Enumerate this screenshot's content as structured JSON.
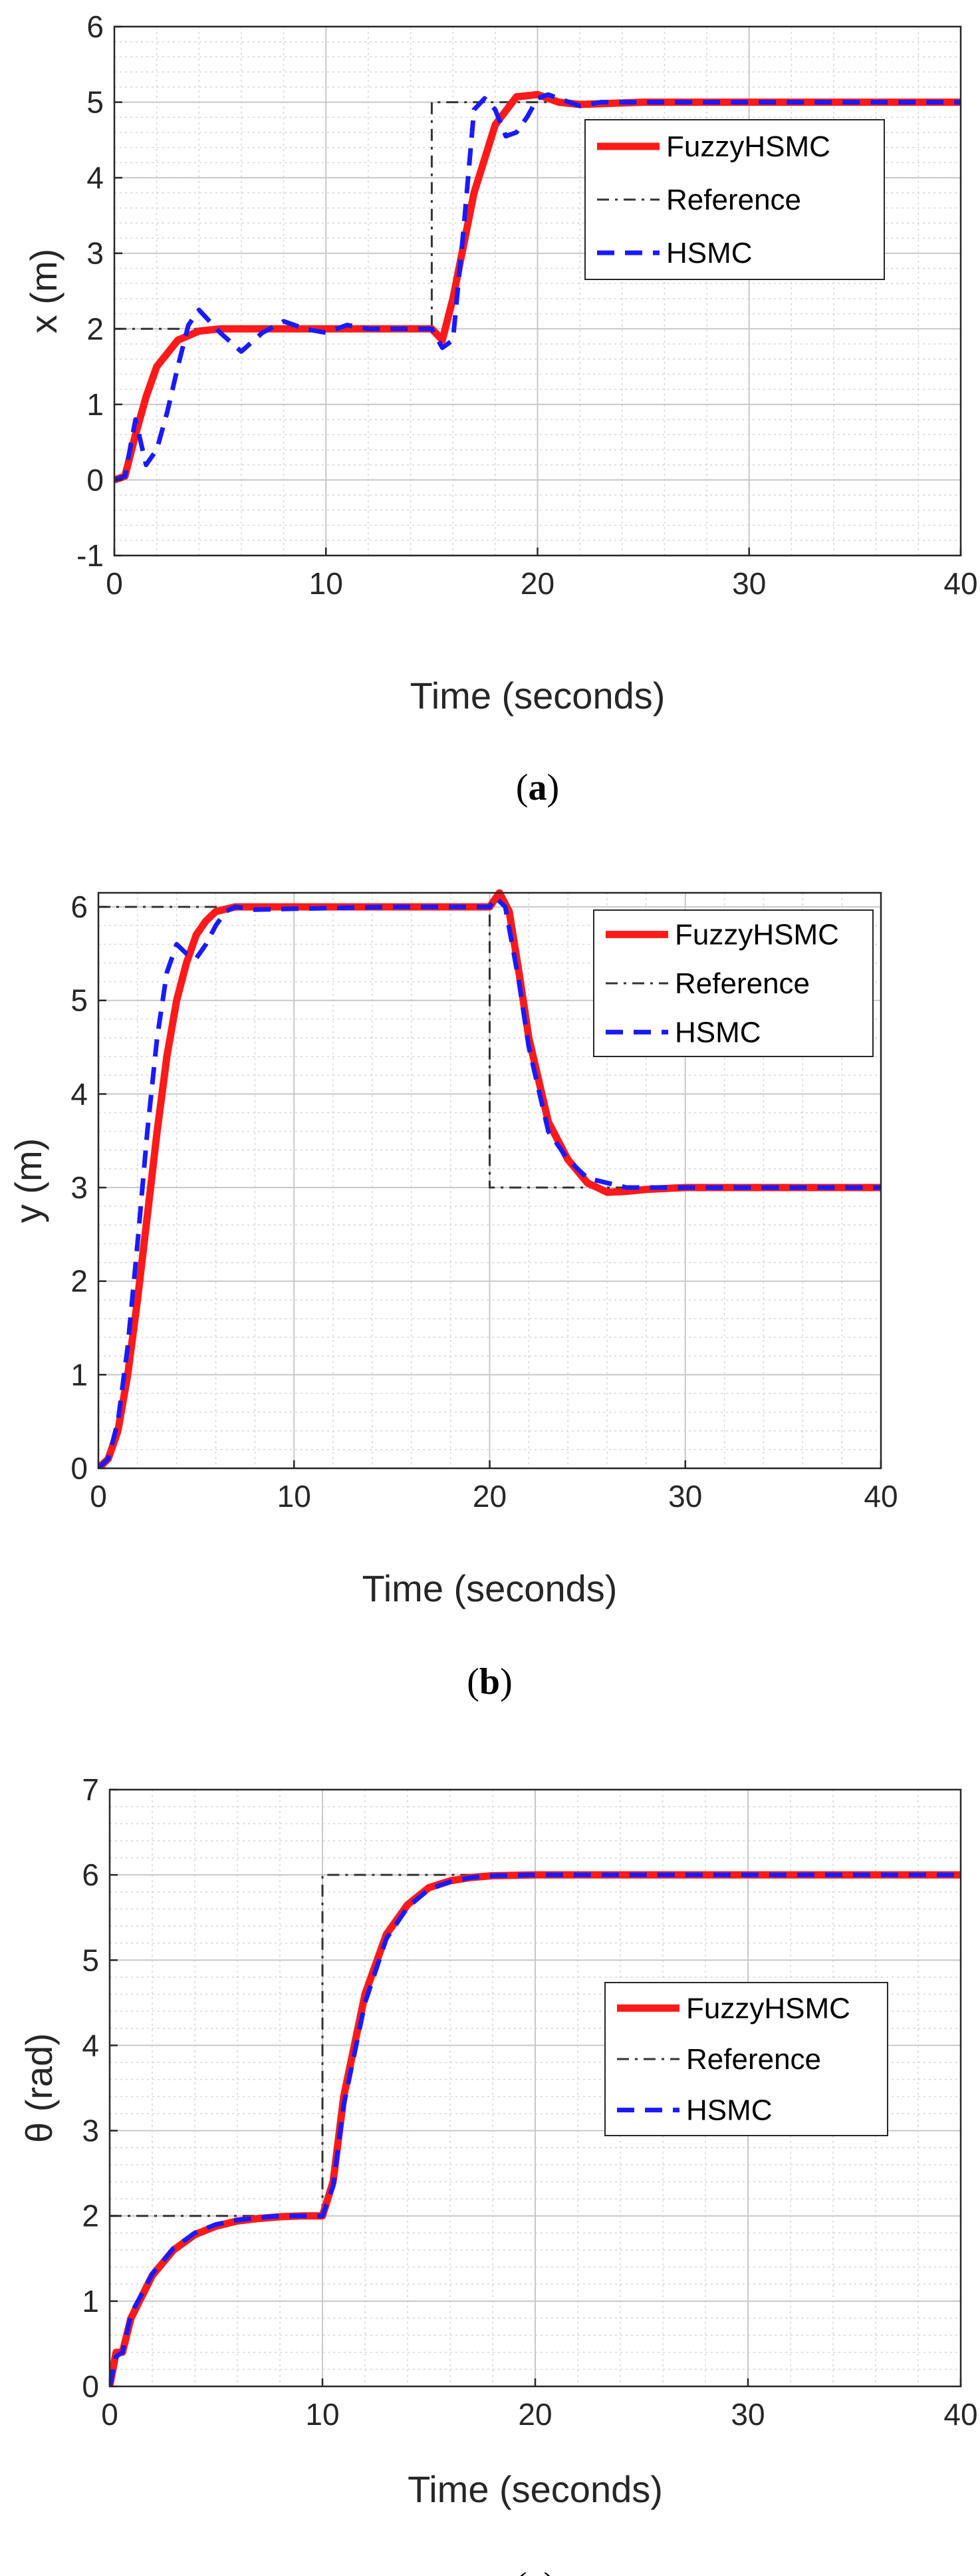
{
  "line_colors": {
    "fuzzy": "#ff1a1a",
    "reference": "#333333",
    "hsmc": "#1a1aff"
  },
  "chart_data": [
    {
      "type": "line",
      "caption_open": "(",
      "caption_letter": "a",
      "caption_close": ")",
      "xlabel": "Time (seconds)",
      "ylabel": "x (m)",
      "xlim": [
        0,
        40
      ],
      "ylim": [
        -1,
        6
      ],
      "xticks": [
        0,
        10,
        20,
        30,
        40
      ],
      "yticks": [
        -1,
        0,
        1,
        2,
        3,
        4,
        5,
        6
      ],
      "grid": true,
      "legend_position": "top-right",
      "series": [
        {
          "name": "FuzzyHSMC",
          "style": "solid",
          "x": [
            0,
            0.5,
            1,
            1.5,
            2,
            3,
            4,
            5,
            8,
            12,
            15,
            15.5,
            16,
            17,
            18,
            19,
            20,
            21,
            22,
            25,
            30,
            40
          ],
          "y": [
            0,
            0.05,
            0.6,
            1.1,
            1.5,
            1.85,
            1.97,
            2,
            2,
            2,
            2,
            1.85,
            2.4,
            3.8,
            4.7,
            5.07,
            5.1,
            5.0,
            4.97,
            5,
            5,
            5
          ]
        },
        {
          "name": "Reference",
          "style": "dashdot",
          "x": [
            0,
            15,
            15,
            40
          ],
          "y": [
            2,
            2,
            5,
            5
          ]
        },
        {
          "name": "HSMC",
          "style": "dashed",
          "x": [
            0,
            0.5,
            1,
            1.5,
            2,
            2.5,
            3,
            3.5,
            4,
            4.5,
            5,
            6,
            7,
            8,
            9,
            10,
            11,
            12,
            13,
            14,
            15,
            15.5,
            16,
            16.5,
            17,
            17.5,
            18,
            18.5,
            19,
            19.5,
            20,
            20.5,
            21,
            22,
            23,
            25,
            30,
            40
          ],
          "y": [
            0,
            0.05,
            0.8,
            0.2,
            0.4,
            0.9,
            1.5,
            2.05,
            2.25,
            2.1,
            1.95,
            1.7,
            1.95,
            2.1,
            2.0,
            1.95,
            2.05,
            2.0,
            2.0,
            2.0,
            2.0,
            1.75,
            1.85,
            3.3,
            4.9,
            5.05,
            4.9,
            4.55,
            4.6,
            4.8,
            5.05,
            5.1,
            5.05,
            4.95,
            5.0,
            5.0,
            5,
            5
          ]
        }
      ]
    },
    {
      "type": "line",
      "caption_open": "(",
      "caption_letter": "b",
      "caption_close": ")",
      "xlabel": "Time (seconds)",
      "ylabel": "y (m)",
      "xlim": [
        0,
        40
      ],
      "ylim": [
        0,
        6.15
      ],
      "xticks": [
        0,
        10,
        20,
        30,
        40
      ],
      "yticks": [
        0,
        1,
        2,
        3,
        4,
        5,
        6
      ],
      "grid": true,
      "legend_position": "top-right",
      "series": [
        {
          "name": "FuzzyHSMC",
          "style": "solid",
          "x": [
            0,
            0.5,
            1,
            1.5,
            2,
            2.5,
            3,
            3.5,
            4,
            4.5,
            5,
            5.5,
            6,
            7,
            8,
            10,
            15,
            20,
            20.5,
            21,
            21.5,
            22,
            23,
            24,
            25,
            26,
            27,
            28,
            30,
            40
          ],
          "y": [
            0,
            0.1,
            0.4,
            1.0,
            1.8,
            2.7,
            3.6,
            4.4,
            5.0,
            5.4,
            5.7,
            5.85,
            5.95,
            6.0,
            6.0,
            6.0,
            6.0,
            6.0,
            6.15,
            5.95,
            5.3,
            4.6,
            3.7,
            3.3,
            3.05,
            2.95,
            2.96,
            2.98,
            3.0,
            3.0
          ]
        },
        {
          "name": "Reference",
          "style": "dashdot",
          "x": [
            0,
            20,
            20,
            40
          ],
          "y": [
            6,
            6,
            3,
            3
          ]
        },
        {
          "name": "HSMC",
          "style": "dashed",
          "x": [
            0,
            0.5,
            1,
            1.5,
            2,
            2.5,
            3,
            3.5,
            4,
            4.5,
            5,
            5.5,
            6,
            6.5,
            7,
            8,
            10,
            15,
            20,
            20.3,
            20.8,
            21.5,
            22,
            23,
            24,
            25,
            26,
            27,
            28,
            30,
            40
          ],
          "y": [
            0,
            0.1,
            0.5,
            1.3,
            2.4,
            3.6,
            4.6,
            5.3,
            5.6,
            5.5,
            5.45,
            5.6,
            5.8,
            5.95,
            6.0,
            5.97,
            5.98,
            6.0,
            6.0,
            6.1,
            6.0,
            5.2,
            4.5,
            3.6,
            3.3,
            3.1,
            3.05,
            3.0,
            3.0,
            3.0,
            3.0
          ]
        }
      ]
    },
    {
      "type": "line",
      "caption_open": "(",
      "caption_letter": "c",
      "caption_close": ")",
      "xlabel": "Time (seconds)",
      "ylabel": "θ (rad)",
      "xlim": [
        0,
        40
      ],
      "ylim": [
        0,
        7
      ],
      "xticks": [
        0,
        10,
        20,
        30,
        40
      ],
      "yticks": [
        0,
        1,
        2,
        3,
        4,
        5,
        6,
        7
      ],
      "grid": true,
      "legend_position": "center-right",
      "series": [
        {
          "name": "FuzzyHSMC",
          "style": "solid",
          "x": [
            0,
            0.3,
            0.6,
            1,
            1.5,
            2,
            3,
            4,
            5,
            6,
            7,
            8,
            9,
            10,
            10.5,
            11,
            12,
            13,
            14,
            15,
            16,
            17,
            18,
            20,
            25,
            30,
            40
          ],
          "y": [
            0,
            0.4,
            0.4,
            0.8,
            1.05,
            1.3,
            1.6,
            1.78,
            1.88,
            1.94,
            1.97,
            1.99,
            2.0,
            2.0,
            2.4,
            3.4,
            4.6,
            5.3,
            5.65,
            5.85,
            5.93,
            5.97,
            5.99,
            6.0,
            6.0,
            6.0,
            6.0
          ]
        },
        {
          "name": "Reference",
          "style": "dashdot",
          "x": [
            0,
            10,
            10,
            40
          ],
          "y": [
            2,
            2,
            6,
            6
          ]
        },
        {
          "name": "HSMC",
          "style": "dashed",
          "x": [
            0,
            0.3,
            0.6,
            1,
            1.5,
            2,
            3,
            4,
            5,
            6,
            7,
            8,
            9,
            10,
            10.5,
            11,
            12,
            13,
            14,
            15,
            16,
            17,
            18,
            20,
            25,
            30,
            40
          ],
          "y": [
            0,
            0.35,
            0.4,
            0.85,
            1.08,
            1.32,
            1.62,
            1.8,
            1.9,
            1.95,
            1.98,
            2.0,
            2.0,
            2.0,
            2.35,
            3.3,
            4.5,
            5.25,
            5.62,
            5.83,
            5.92,
            5.97,
            5.99,
            6.0,
            6.0,
            6.0,
            6.0
          ]
        }
      ]
    }
  ]
}
